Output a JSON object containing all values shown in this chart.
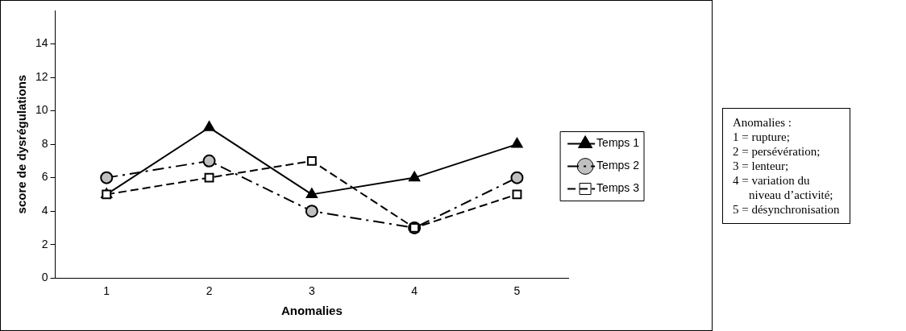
{
  "chart_data": {
    "type": "line",
    "xlabel": "Anomalies",
    "ylabel": "score de dysrégulations",
    "categories": [
      "1",
      "2",
      "3",
      "4",
      "5"
    ],
    "series": [
      {
        "name": "Temps 1",
        "color": "#000000",
        "values": [
          5,
          9,
          5,
          6,
          8
        ],
        "marker": "triangle",
        "line_style": "solid"
      },
      {
        "name": "Temps 2",
        "color": "#000000",
        "values": [
          6,
          7,
          4,
          3,
          6
        ],
        "marker": "circle",
        "line_style": "dashdot"
      },
      {
        "name": "Temps 3",
        "color": "#000000",
        "values": [
          5,
          6,
          7,
          3,
          5
        ],
        "marker": "square",
        "line_style": "dashed"
      }
    ],
    "ylim": [
      0,
      16
    ],
    "yticks": [
      0,
      2,
      4,
      6,
      8,
      10,
      12,
      14
    ],
    "grid": false,
    "legend": "right",
    "annotations": [
      "Anomalies :",
      "1 = rupture;",
      "2 = persévération;",
      "3 = lenteur;",
      "4 = variation du",
      "niveau d’activité;",
      "5 = désynchronisation"
    ]
  }
}
